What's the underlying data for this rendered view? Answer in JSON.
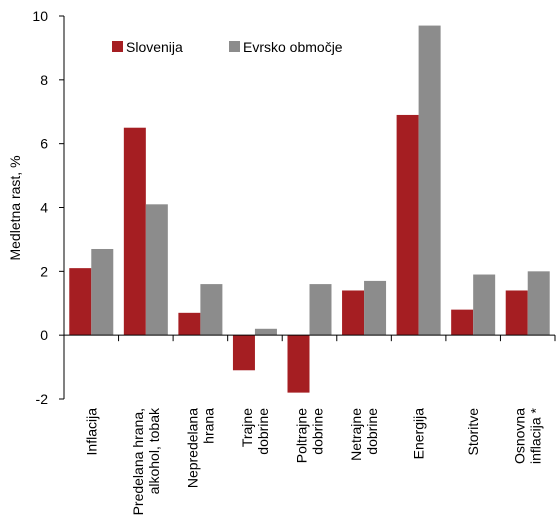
{
  "chart_data": {
    "type": "bar",
    "ylabel": "Medletna rast, %",
    "xlabel": "",
    "ylim": [
      -2,
      10
    ],
    "yticks": [
      -2,
      0,
      2,
      4,
      6,
      8,
      10
    ],
    "grid": false,
    "legend_position": "top-left",
    "categories": [
      [
        "Inflacija"
      ],
      [
        "Predelana hrana,",
        "alkohol, tobak"
      ],
      [
        "Nepredelana",
        "hrana"
      ],
      [
        "Trajne",
        "dobrine"
      ],
      [
        "Poltrajne",
        "dobrine"
      ],
      [
        "Netrajne",
        "dobrine"
      ],
      [
        "Energija"
      ],
      [
        "Storitve"
      ],
      [
        "Osnovna",
        "inflacija *"
      ]
    ],
    "series": [
      {
        "name": "Slovenija",
        "color": "#A51E22",
        "values": [
          2.1,
          6.5,
          0.7,
          -1.1,
          -1.8,
          1.4,
          6.9,
          0.8,
          1.4
        ]
      },
      {
        "name": "Evrsko območje",
        "color": "#8C8C8C",
        "values": [
          2.7,
          4.1,
          1.6,
          0.2,
          1.6,
          1.7,
          9.7,
          1.9,
          2.0
        ]
      }
    ]
  }
}
